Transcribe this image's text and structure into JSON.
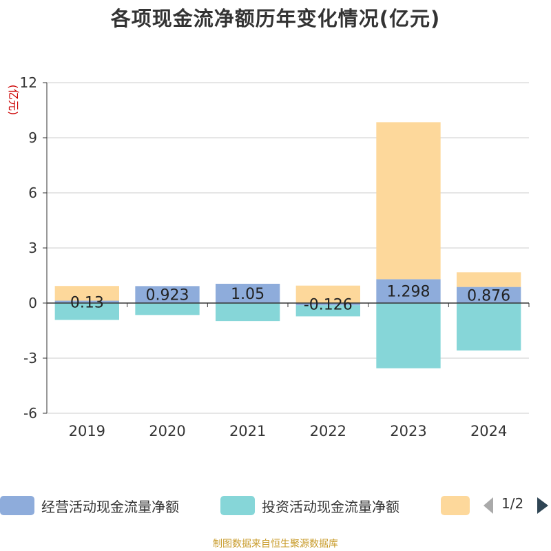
{
  "chart_data": {
    "type": "bar",
    "stacked": true,
    "title": "各项现金流净额历年变化情况(亿元)",
    "ylabel": "(亿元)",
    "xlabel": "",
    "ylim": [
      -6,
      12
    ],
    "yticks": [
      -6,
      -3,
      0,
      3,
      6,
      9,
      12
    ],
    "categories": [
      "2019",
      "2020",
      "2021",
      "2022",
      "2023",
      "2024"
    ],
    "series": [
      {
        "name": "经营活动现金流量净额",
        "color": "#8eacdb",
        "values": [
          0.13,
          0.923,
          1.05,
          -0.126,
          1.298,
          0.876
        ],
        "labels": [
          "0.13",
          "0.923",
          "1.05",
          "-0.126",
          "1.298",
          "0.876"
        ]
      },
      {
        "name": "投资活动现金流量净额",
        "color": "#86d6d8",
        "values": [
          -0.92,
          -0.65,
          -0.98,
          -0.6,
          -3.55,
          -2.58
        ]
      },
      {
        "name": "",
        "color": "#fdd89b",
        "values": [
          0.8,
          0.0,
          0.0,
          0.95,
          8.55,
          0.8
        ]
      }
    ],
    "grid": true,
    "legend_position": "bottom"
  },
  "legend": {
    "items": [
      {
        "label": "经营活动现金流量净额",
        "color": "#8eacdb"
      },
      {
        "label": "投资活动现金流量净额",
        "color": "#86d6d8"
      },
      {
        "label": "",
        "color": "#fdd89b"
      }
    ],
    "page": "1/2"
  },
  "source_note": "制图数据来自恒生聚源数据库"
}
